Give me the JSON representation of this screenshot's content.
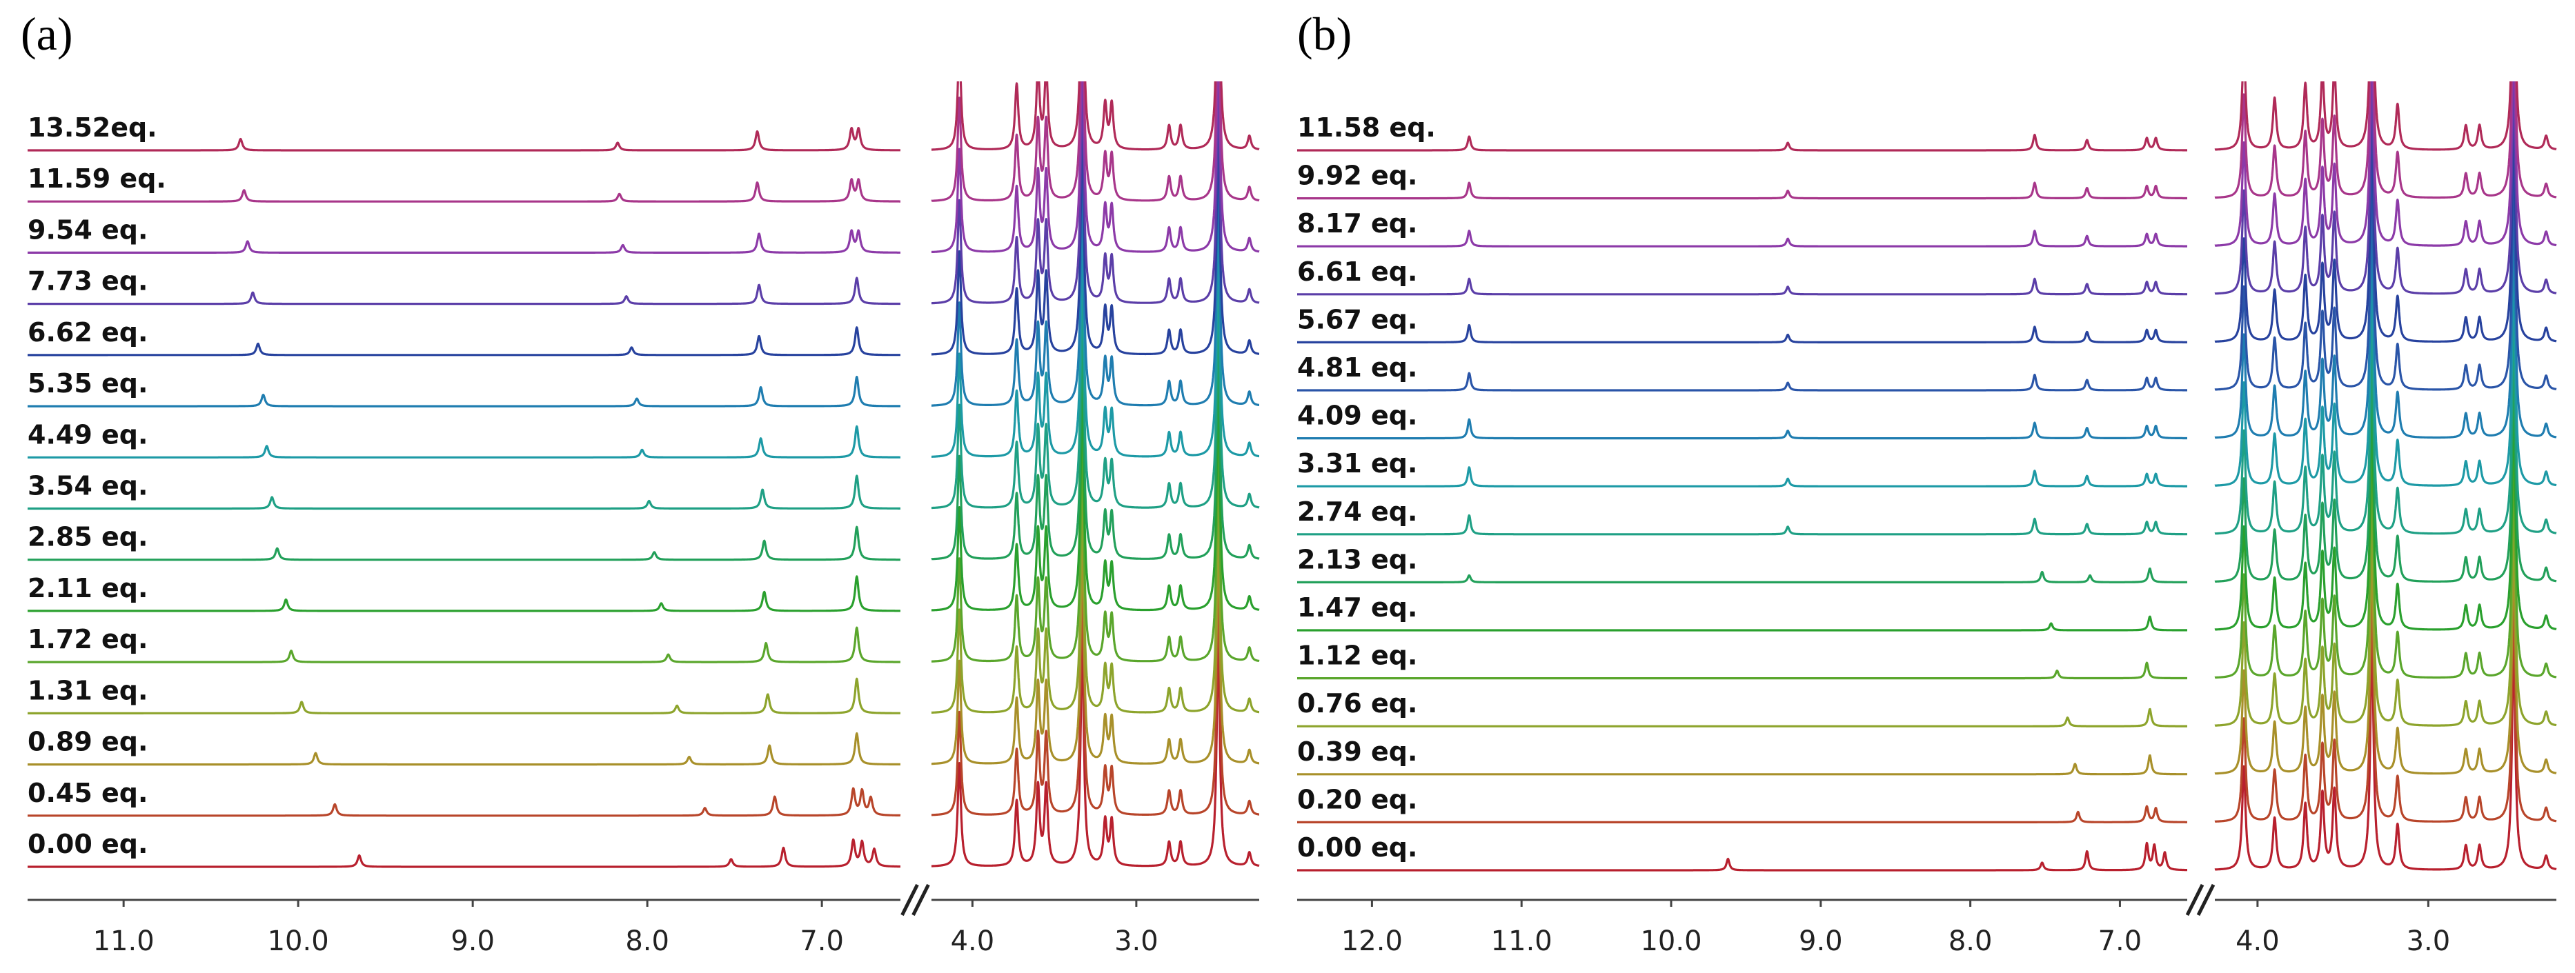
{
  "chart_data": [
    {
      "type": "line",
      "panel": "(a)",
      "title": "",
      "xlabel": "",
      "ylabel": "",
      "x_unit": "ppm",
      "x_segments": [
        [
          11.55,
          6.55
        ],
        [
          4.25,
          2.25
        ]
      ],
      "axis_ticks": [
        "11.0",
        "10.0",
        "9.0",
        "8.0",
        "7.0",
        "4.0",
        "3.0"
      ],
      "axis_tick_values": [
        11.0,
        10.0,
        9.0,
        8.0,
        7.0,
        4.0,
        3.0
      ],
      "axis_break": "//",
      "series": [
        {
          "name": "0.00 eq.",
          "equiv": 0.0,
          "color": "#b8202e",
          "peaks": [
            [
              9.65,
              0.33
            ],
            [
              7.52,
              0.22
            ],
            [
              7.22,
              0.55
            ],
            [
              6.82,
              0.75
            ],
            [
              6.77,
              0.7
            ],
            [
              6.7,
              0.5
            ]
          ]
        },
        {
          "name": "0.45 eq.",
          "equiv": 0.45,
          "color": "#b8452a",
          "peaks": [
            [
              9.79,
              0.33
            ],
            [
              7.67,
              0.22
            ],
            [
              7.27,
              0.55
            ],
            [
              6.82,
              0.75
            ],
            [
              6.77,
              0.7
            ],
            [
              6.72,
              0.5
            ]
          ]
        },
        {
          "name": "0.89 eq.",
          "equiv": 0.89,
          "color": "#a8902a",
          "peaks": [
            [
              9.9,
              0.33
            ],
            [
              7.76,
              0.22
            ],
            [
              7.3,
              0.55
            ],
            [
              6.8,
              0.9
            ]
          ]
        },
        {
          "name": "1.31 eq.",
          "equiv": 1.31,
          "color": "#8da42c",
          "peaks": [
            [
              9.98,
              0.33
            ],
            [
              7.83,
              0.22
            ],
            [
              7.31,
              0.55
            ],
            [
              6.8,
              1.0
            ]
          ]
        },
        {
          "name": "1.72 eq.",
          "equiv": 1.72,
          "color": "#5aa62c",
          "peaks": [
            [
              10.04,
              0.33
            ],
            [
              7.88,
              0.22
            ],
            [
              7.32,
              0.55
            ],
            [
              6.8,
              1.0
            ]
          ]
        },
        {
          "name": "2.11 eq.",
          "equiv": 2.11,
          "color": "#2aa02e",
          "peaks": [
            [
              10.07,
              0.33
            ],
            [
              7.92,
              0.22
            ],
            [
              7.33,
              0.55
            ],
            [
              6.8,
              1.0
            ]
          ]
        },
        {
          "name": "2.85 eq.",
          "equiv": 2.85,
          "color": "#22a05a",
          "peaks": [
            [
              10.12,
              0.33
            ],
            [
              7.96,
              0.22
            ],
            [
              7.33,
              0.55
            ],
            [
              6.8,
              0.95
            ]
          ]
        },
        {
          "name": "3.54 eq.",
          "equiv": 3.54,
          "color": "#1fa085",
          "peaks": [
            [
              10.15,
              0.33
            ],
            [
              7.99,
              0.22
            ],
            [
              7.34,
              0.55
            ],
            [
              6.8,
              0.95
            ]
          ]
        },
        {
          "name": "4.49 eq.",
          "equiv": 4.49,
          "color": "#1d9aa6",
          "peaks": [
            [
              10.18,
              0.33
            ],
            [
              8.03,
              0.22
            ],
            [
              7.35,
              0.55
            ],
            [
              6.8,
              0.9
            ]
          ]
        },
        {
          "name": "5.35 eq.",
          "equiv": 5.35,
          "color": "#1f7db0",
          "peaks": [
            [
              10.2,
              0.33
            ],
            [
              8.06,
              0.22
            ],
            [
              7.35,
              0.55
            ],
            [
              6.8,
              0.85
            ]
          ]
        },
        {
          "name": "6.62 eq.",
          "equiv": 6.62,
          "color": "#27429e",
          "peaks": [
            [
              10.23,
              0.33
            ],
            [
              8.09,
              0.22
            ],
            [
              7.36,
              0.55
            ],
            [
              6.8,
              0.8
            ]
          ]
        },
        {
          "name": "7.73 eq.",
          "equiv": 7.73,
          "color": "#5b3ea8",
          "peaks": [
            [
              10.26,
              0.33
            ],
            [
              8.12,
              0.22
            ],
            [
              7.36,
              0.55
            ],
            [
              6.8,
              0.75
            ]
          ]
        },
        {
          "name": "9.54 eq.",
          "equiv": 9.54,
          "color": "#8c3aa8",
          "peaks": [
            [
              10.29,
              0.33
            ],
            [
              8.14,
              0.22
            ],
            [
              7.36,
              0.55
            ],
            [
              6.83,
              0.6
            ],
            [
              6.79,
              0.6
            ]
          ]
        },
        {
          "name": "11.59 eq.",
          "equiv": 11.59,
          "color": "#a8368a",
          "peaks": [
            [
              10.31,
              0.33
            ],
            [
              8.16,
              0.22
            ],
            [
              7.37,
              0.55
            ],
            [
              6.83,
              0.6
            ],
            [
              6.79,
              0.6
            ]
          ]
        },
        {
          "name": "13.52eq.",
          "equiv": 13.52,
          "color": "#b02a58",
          "peaks": [
            [
              10.33,
              0.33
            ],
            [
              8.17,
              0.22
            ],
            [
              7.37,
              0.55
            ],
            [
              6.83,
              0.6
            ],
            [
              6.79,
              0.6
            ]
          ]
        }
      ],
      "shared_peaks_right": [
        [
          4.08,
          3.0
        ],
        [
          3.73,
          1.9
        ],
        [
          3.6,
          2.3
        ],
        [
          3.55,
          2.3
        ],
        [
          3.33,
          6.5
        ],
        [
          3.19,
          1.3
        ],
        [
          3.15,
          1.3
        ],
        [
          2.8,
          0.7
        ],
        [
          2.73,
          0.7
        ],
        [
          2.5,
          6.5
        ],
        [
          2.31,
          0.4
        ]
      ]
    },
    {
      "type": "line",
      "panel": "(b)",
      "title": "",
      "xlabel": "",
      "ylabel": "",
      "x_unit": "ppm",
      "x_segments": [
        [
          12.5,
          6.55
        ],
        [
          4.25,
          2.25
        ]
      ],
      "axis_ticks": [
        "12.0",
        "11.0",
        "10.0",
        "9.0",
        "8.0",
        "7.0",
        "4.0",
        "3.0"
      ],
      "axis_tick_values": [
        12.0,
        11.0,
        10.0,
        9.0,
        8.0,
        7.0,
        4.0,
        3.0
      ],
      "axis_break": "//",
      "series": [
        {
          "name": "0.00 eq.",
          "equiv": 0.0,
          "color": "#b8202e",
          "peaks": [
            [
              9.62,
              0.33
            ],
            [
              7.52,
              0.22
            ],
            [
              7.22,
              0.55
            ],
            [
              6.82,
              0.75
            ],
            [
              6.77,
              0.7
            ],
            [
              6.7,
              0.5
            ]
          ]
        },
        {
          "name": "0.20 eq.",
          "equiv": 0.2,
          "color": "#b8452a",
          "peaks": [
            [
              7.28,
              0.3
            ],
            [
              6.82,
              0.45
            ],
            [
              6.76,
              0.4
            ]
          ]
        },
        {
          "name": "0.39 eq.",
          "equiv": 0.39,
          "color": "#a8902a",
          "peaks": [
            [
              7.3,
              0.3
            ],
            [
              6.8,
              0.55
            ]
          ]
        },
        {
          "name": "0.76 eq.",
          "equiv": 0.76,
          "color": "#8da42c",
          "peaks": [
            [
              7.35,
              0.25
            ],
            [
              6.8,
              0.5
            ]
          ]
        },
        {
          "name": "1.12 eq.",
          "equiv": 1.12,
          "color": "#5aa62c",
          "peaks": [
            [
              7.42,
              0.22
            ],
            [
              6.82,
              0.45
            ]
          ]
        },
        {
          "name": "1.47 eq.",
          "equiv": 1.47,
          "color": "#2aa02e",
          "peaks": [
            [
              7.46,
              0.2
            ],
            [
              6.8,
              0.4
            ]
          ]
        },
        {
          "name": "2.13 eq.",
          "equiv": 2.13,
          "color": "#22a05a",
          "peaks": [
            [
              11.35,
              0.2
            ],
            [
              7.52,
              0.3
            ],
            [
              7.2,
              0.2
            ],
            [
              6.8,
              0.4
            ]
          ]
        },
        {
          "name": "2.74 eq.",
          "equiv": 2.74,
          "color": "#1fa085",
          "peaks": [
            [
              11.35,
              0.55
            ],
            [
              9.22,
              0.22
            ],
            [
              7.57,
              0.45
            ],
            [
              7.22,
              0.3
            ],
            [
              6.82,
              0.35
            ],
            [
              6.76,
              0.35
            ]
          ]
        },
        {
          "name": "3.31 eq.",
          "equiv": 3.31,
          "color": "#1d9aa6",
          "peaks": [
            [
              11.35,
              0.55
            ],
            [
              9.22,
              0.22
            ],
            [
              7.57,
              0.45
            ],
            [
              7.22,
              0.3
            ],
            [
              6.82,
              0.35
            ],
            [
              6.76,
              0.35
            ]
          ]
        },
        {
          "name": "4.09 eq.",
          "equiv": 4.09,
          "color": "#1f7db0",
          "peaks": [
            [
              11.35,
              0.55
            ],
            [
              9.22,
              0.22
            ],
            [
              7.57,
              0.45
            ],
            [
              7.22,
              0.3
            ],
            [
              6.82,
              0.35
            ],
            [
              6.76,
              0.35
            ]
          ]
        },
        {
          "name": "4.81 eq.",
          "equiv": 4.81,
          "color": "#2a55a8",
          "peaks": [
            [
              11.35,
              0.5
            ],
            [
              9.22,
              0.22
            ],
            [
              7.57,
              0.45
            ],
            [
              7.22,
              0.3
            ],
            [
              6.82,
              0.35
            ],
            [
              6.76,
              0.35
            ]
          ]
        },
        {
          "name": "5.67 eq.",
          "equiv": 5.67,
          "color": "#27429e",
          "peaks": [
            [
              11.35,
              0.5
            ],
            [
              9.22,
              0.22
            ],
            [
              7.57,
              0.45
            ],
            [
              7.22,
              0.3
            ],
            [
              6.82,
              0.35
            ],
            [
              6.76,
              0.35
            ]
          ]
        },
        {
          "name": "6.61 eq.",
          "equiv": 6.61,
          "color": "#5b3ea8",
          "peaks": [
            [
              11.35,
              0.45
            ],
            [
              9.22,
              0.22
            ],
            [
              7.57,
              0.45
            ],
            [
              7.22,
              0.3
            ],
            [
              6.82,
              0.35
            ],
            [
              6.76,
              0.35
            ]
          ]
        },
        {
          "name": "8.17 eq.",
          "equiv": 8.17,
          "color": "#8c3aa8",
          "peaks": [
            [
              11.35,
              0.45
            ],
            [
              9.22,
              0.22
            ],
            [
              7.57,
              0.45
            ],
            [
              7.22,
              0.3
            ],
            [
              6.82,
              0.35
            ],
            [
              6.76,
              0.35
            ]
          ]
        },
        {
          "name": "9.92 eq.",
          "equiv": 9.92,
          "color": "#a8368a",
          "peaks": [
            [
              11.35,
              0.45
            ],
            [
              9.22,
              0.22
            ],
            [
              7.57,
              0.45
            ],
            [
              7.22,
              0.3
            ],
            [
              6.82,
              0.35
            ],
            [
              6.76,
              0.35
            ]
          ]
        },
        {
          "name": "11.58 eq.",
          "equiv": 11.58,
          "color": "#b02a58",
          "peaks": [
            [
              11.35,
              0.4
            ],
            [
              9.22,
              0.22
            ],
            [
              7.57,
              0.45
            ],
            [
              7.22,
              0.3
            ],
            [
              6.82,
              0.35
            ],
            [
              6.76,
              0.35
            ]
          ]
        }
      ],
      "shared_peaks_right": [
        [
          4.08,
          3.0
        ],
        [
          3.9,
          1.5
        ],
        [
          3.72,
          1.9
        ],
        [
          3.62,
          2.2
        ],
        [
          3.55,
          2.3
        ],
        [
          3.33,
          6.5
        ],
        [
          3.18,
          1.3
        ],
        [
          2.78,
          0.7
        ],
        [
          2.7,
          0.7
        ],
        [
          2.5,
          6.5
        ],
        [
          2.31,
          0.4
        ]
      ]
    }
  ]
}
